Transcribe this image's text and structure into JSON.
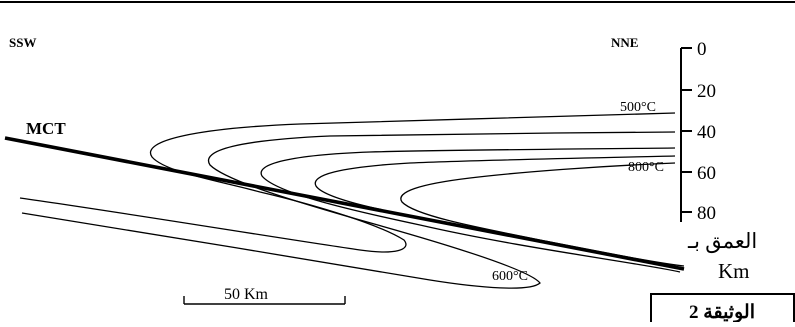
{
  "diagram": {
    "labels": {
      "ssw": "SSW",
      "nne": "NNE",
      "mct": "MCT",
      "iso_500": "500°C",
      "iso_800": "800°C",
      "iso_600": "600°C"
    },
    "depth_axis": {
      "ticks": [
        "0",
        "20",
        "40",
        "60",
        "80"
      ],
      "label_ar": "العمق بـ",
      "unit": "Km"
    },
    "scale_bar": {
      "label": "50 Km"
    },
    "document_label": "الوثيقة 2"
  }
}
